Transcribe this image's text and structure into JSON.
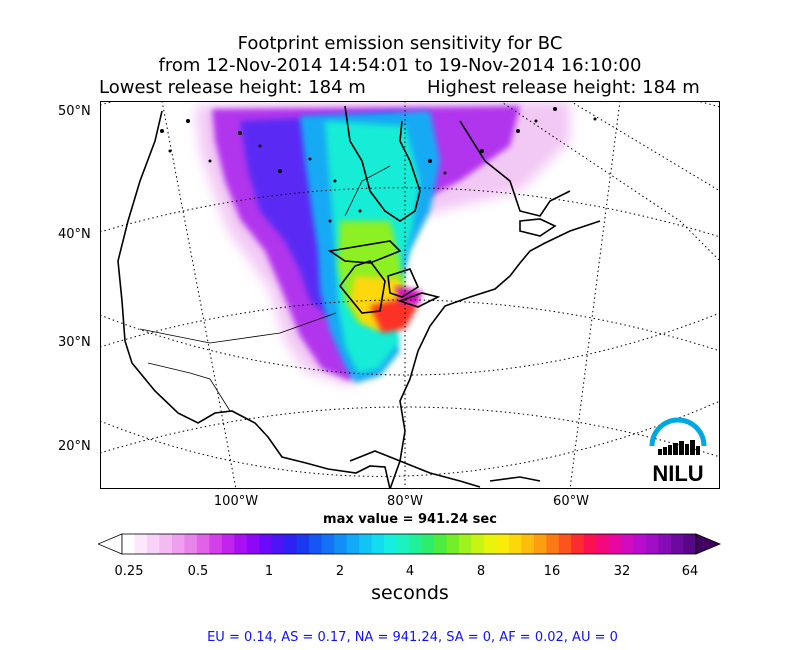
{
  "title": {
    "line1": "Footprint emission sensitivity for BC",
    "line2": "from 12-Nov-2014 14:54:01 to 19-Nov-2014 16:10:00",
    "lowest": "Lowest release height: 184 m",
    "highest": "Highest release height: 184 m"
  },
  "map": {
    "lat_labels": [
      "50°N",
      "40°N",
      "30°N",
      "20°N"
    ],
    "lon_labels": [
      "100°W",
      "80°W",
      "60°W"
    ],
    "max_value_text": "max value = 941.24 sec",
    "logo_text": "NILU",
    "logo_color": "#00a8e0"
  },
  "colorbar": {
    "tick_labels": [
      "0.25",
      "0.5",
      "1",
      "2",
      "4",
      "8",
      "16",
      "32",
      "64"
    ],
    "unit_label": "seconds",
    "colors": [
      "#ffffff",
      "#fde8fb",
      "#f9d2f7",
      "#f4baf2",
      "#eea0ee",
      "#e883ea",
      "#df62e7",
      "#d340ea",
      "#c224ee",
      "#aa10f4",
      "#8e08f8",
      "#6c0afa",
      "#4d14f6",
      "#2e22f2",
      "#1a3af2",
      "#1656f4",
      "#1472f6",
      "#128ef6",
      "#10aaf6",
      "#10c4f4",
      "#12dcf0",
      "#16eee2",
      "#1af2c0",
      "#20f098",
      "#2eec6c",
      "#4cec40",
      "#74ee28",
      "#a0f21c",
      "#c8f414",
      "#e8f40c",
      "#faec08",
      "#fcd80a",
      "#fcbc0c",
      "#fc9e10",
      "#fc7a14",
      "#fc541c",
      "#fc2c30",
      "#fc1050",
      "#f4087a",
      "#e608a0",
      "#d20ac0",
      "#ba0ccc",
      "#a00ec8",
      "#860cb8",
      "#6c0aa0",
      "#560888"
    ],
    "under_color": "#ffffff",
    "over_color": "#420060"
  },
  "footer": "EU = 0.14,  AS = 0.17,  NA = 941.24,  SA = 0,  AF = 0.02,  AU = 0"
}
